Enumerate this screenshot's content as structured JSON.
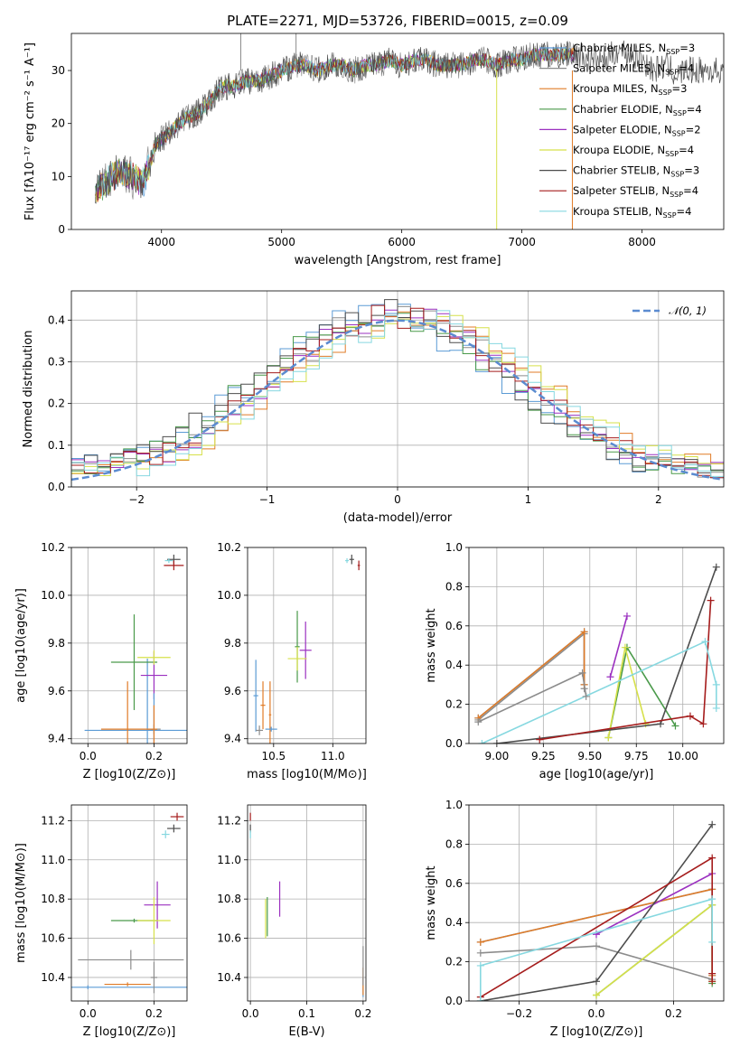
{
  "figure": {
    "title": "PLATE=2271, MJD=53726, FIBERID=0015, z=0.09",
    "models": [
      {
        "name": "Chabrier MILES",
        "nssp": "3",
        "color": "#5b9bd5"
      },
      {
        "name": "Salpeter MILES",
        "nssp": "4",
        "color": "#8c8c8c"
      },
      {
        "name": "Kroupa MILES",
        "nssp": "3",
        "color": "#e07b27"
      },
      {
        "name": "Chabrier ELODIE",
        "nssp": "4",
        "color": "#4a9a4a"
      },
      {
        "name": "Salpeter ELODIE",
        "nssp": "2",
        "color": "#9b30c0"
      },
      {
        "name": "Kroupa ELODIE",
        "nssp": "4",
        "color": "#d6e04a"
      },
      {
        "name": "Chabrier STELIB",
        "nssp": "3",
        "color": "#4d4d4d"
      },
      {
        "name": "Salpeter STELIB",
        "nssp": "4",
        "color": "#a51c1c"
      },
      {
        "name": "Kroupa STELIB",
        "nssp": "4",
        "color": "#86d8e0"
      }
    ]
  },
  "chart_data": [
    {
      "id": "spectrum",
      "type": "line",
      "xlabel": "wavelength [Angstrom, rest frame]",
      "ylabel": "Flux [fλ10⁻¹⁷ erg cm⁻² s⁻¹ A⁻¹]",
      "xlim": [
        3250,
        8680
      ],
      "ylim": [
        0,
        37
      ],
      "xticks": [
        4000,
        5000,
        6000,
        7000,
        8000
      ],
      "yticks": [
        0,
        10,
        20,
        30
      ],
      "grid": false,
      "legend": "right",
      "x": [
        3450,
        3550,
        3650,
        3750,
        3850,
        3900,
        3950,
        4000,
        4100,
        4200,
        4300,
        4400,
        4500,
        4600,
        4700,
        4800,
        4900,
        5000,
        5100,
        5200,
        5300,
        5400,
        5500,
        5600,
        5700,
        5800,
        5900,
        6000,
        6100,
        6200,
        6300,
        6400,
        6500,
        6600,
        6700,
        6800,
        6900,
        7000,
        7100,
        7200,
        7300,
        7400,
        7500,
        7600,
        7700,
        7800,
        7900,
        8000,
        8100,
        8200,
        8300,
        8350
      ],
      "flux": [
        7,
        9,
        11,
        10,
        9,
        12,
        16,
        17,
        19,
        21,
        22,
        24,
        27,
        27,
        28,
        28,
        29,
        30,
        31,
        31,
        30,
        31,
        31,
        30,
        31,
        31,
        32,
        31,
        32,
        32,
        31,
        31,
        31,
        32,
        32,
        31,
        32,
        32,
        33,
        33,
        33,
        33,
        33,
        32,
        32,
        34,
        33,
        32,
        30,
        31,
        29,
        30
      ],
      "dropouts": [
        {
          "x": 6790,
          "y": 0
        },
        {
          "x": 7420,
          "y": 0
        },
        {
          "x": 5120,
          "y": 37
        },
        {
          "x": 4660,
          "y": 37
        }
      ]
    },
    {
      "id": "residuals",
      "type": "line",
      "xlabel": "(data-model)/error",
      "ylabel": "Normed distribution",
      "xlim": [
        -2.5,
        2.5
      ],
      "ylim": [
        0,
        0.47
      ],
      "xticks": [
        -2,
        -1,
        0,
        1,
        2
      ],
      "yticks": [
        0.0,
        0.1,
        0.2,
        0.3,
        0.4
      ],
      "grid": true,
      "legend": "top-right",
      "reference_label": "𝒩(0, 1)",
      "bin_width": 0.1,
      "bin_start": -2.5
    },
    {
      "id": "age_vs_Z",
      "type": "scatter",
      "xlabel": "Z [log10(Z/Z⊙)]",
      "ylabel": "age  [log10(age/yr)]",
      "xlim": [
        -0.05,
        0.3
      ],
      "ylim": [
        9.38,
        10.2
      ],
      "xticks": [
        0.0,
        0.2
      ],
      "yticks": [
        9.4,
        9.6,
        9.8,
        10.0,
        10.2
      ],
      "grid": true,
      "points": [
        {
          "m": 0,
          "x": 0.18,
          "y": 9.435,
          "xe": 0.19,
          "ye": 0.3
        },
        {
          "m": 1,
          "x": 0.2,
          "y": 9.44,
          "xe": 0.02,
          "ye": 0.02
        },
        {
          "m": 2,
          "x": 0.12,
          "y": 9.44,
          "xe": 0.08,
          "ye": 0.2
        },
        {
          "m": 3,
          "x": 0.14,
          "y": 9.72,
          "xe": 0.07,
          "ye": 0.2
        },
        {
          "m": 4,
          "x": 0.2,
          "y": 9.665,
          "xe": 0.04,
          "ye": 0.1
        },
        {
          "m": 5,
          "x": 0.2,
          "y": 9.74,
          "xe": 0.05,
          "ye": 0.03
        },
        {
          "m": 6,
          "x": 0.26,
          "y": 10.15,
          "xe": 0.02,
          "ye": 0.02
        },
        {
          "m": 7,
          "x": 0.26,
          "y": 10.125,
          "xe": 0.03,
          "ye": 0.02
        },
        {
          "m": 8,
          "x": 0.245,
          "y": 10.145,
          "xe": 0.012,
          "ye": 0.01
        },
        {
          "m": 0,
          "x": 0.2,
          "y": 9.44,
          "xe": 0.01,
          "ye": 0.15
        },
        {
          "m": 2,
          "x": 0.2,
          "y": 9.44,
          "xe": 0.01,
          "ye": 0.1
        }
      ]
    },
    {
      "id": "age_vs_mass",
      "type": "scatter",
      "xlabel": "mass [log10(M/M⊙)]",
      "ylabel": "",
      "xlim": [
        10.28,
        11.28
      ],
      "ylim": [
        9.38,
        10.2
      ],
      "xticks": [
        10.5,
        11.0
      ],
      "yticks": [
        9.4,
        9.6,
        9.8,
        10.0,
        10.2
      ],
      "grid": true,
      "points": [
        {
          "m": 0,
          "x": 10.35,
          "y": 9.58,
          "xe": 0.02,
          "ye": 0.15
        },
        {
          "m": 1,
          "x": 10.38,
          "y": 9.435,
          "xe": 0.03,
          "ye": 0.02
        },
        {
          "m": 2,
          "x": 10.41,
          "y": 9.54,
          "xe": 0.02,
          "ye": 0.1
        },
        {
          "m": 3,
          "x": 10.7,
          "y": 9.785,
          "xe": 0.02,
          "ye": 0.15
        },
        {
          "m": 4,
          "x": 10.77,
          "y": 9.77,
          "xe": 0.05,
          "ye": 0.12
        },
        {
          "m": 5,
          "x": 10.7,
          "y": 9.735,
          "xe": 0.08,
          "ye": 0.05
        },
        {
          "m": 6,
          "x": 11.16,
          "y": 10.15,
          "xe": 0.02,
          "ye": 0.02
        },
        {
          "m": 7,
          "x": 11.22,
          "y": 10.125,
          "xe": 0.01,
          "ye": 0.02
        },
        {
          "m": 8,
          "x": 11.12,
          "y": 10.145,
          "xe": 0.015,
          "ye": 0.01
        },
        {
          "m": 2,
          "x": 10.47,
          "y": 9.5,
          "xe": 0.01,
          "ye": 0.14
        },
        {
          "m": 0,
          "x": 10.48,
          "y": 9.44,
          "xe": 0.05,
          "ye": 0.01
        }
      ]
    },
    {
      "id": "weight_vs_age",
      "type": "line",
      "xlabel": "age  [log10(age/yr)]",
      "ylabel": "mass weight",
      "xlim": [
        8.85,
        10.22
      ],
      "ylim": [
        0,
        1.0
      ],
      "xticks": [
        9.0,
        9.25,
        9.5,
        9.75,
        10.0
      ],
      "yticks": [
        0.0,
        0.2,
        0.4,
        0.6,
        0.8,
        1.0
      ],
      "grid": true,
      "series": [
        {
          "m": 0,
          "x": [
            8.9,
            9.47,
            9.47
          ],
          "y": [
            0.13,
            0.57,
            0.3
          ]
        },
        {
          "m": 1,
          "x": [
            8.9,
            9.47,
            9.47
          ],
          "y": [
            0.12,
            0.56,
            0.28
          ]
        },
        {
          "m": 2,
          "x": [
            8.9,
            9.47,
            9.47
          ],
          "y": [
            0.13,
            0.57,
            0.3
          ]
        },
        {
          "m": 3,
          "x": [
            9.6,
            9.7,
            9.96
          ],
          "y": [
            0.03,
            0.49,
            0.09
          ]
        },
        {
          "m": 4,
          "x": [
            9.61,
            9.7
          ],
          "y": [
            0.34,
            0.65
          ]
        },
        {
          "m": 5,
          "x": [
            9.6,
            9.69,
            9.8
          ],
          "y": [
            0.03,
            0.49,
            0.1
          ]
        },
        {
          "m": 6,
          "x": [
            9.0,
            9.88,
            10.18
          ],
          "y": [
            0.0,
            0.1,
            0.9
          ]
        },
        {
          "m": 7,
          "x": [
            9.23,
            10.04,
            10.11,
            10.15
          ],
          "y": [
            0.02,
            0.14,
            0.1,
            0.73
          ]
        },
        {
          "m": 8,
          "x": [
            8.92,
            10.12,
            10.18,
            10.18
          ],
          "y": [
            0.0,
            0.52,
            0.3,
            0.18
          ]
        },
        {
          "m": 1,
          "x": [
            8.9,
            9.46,
            9.48
          ],
          "y": [
            0.11,
            0.36,
            0.24
          ]
        }
      ]
    },
    {
      "id": "mass_vs_Z",
      "type": "scatter",
      "xlabel": "Z [log10(Z/Z⊙)]",
      "ylabel": "mass [log10(M/M⊙)]",
      "xlim": [
        -0.05,
        0.3
      ],
      "ylim": [
        10.28,
        11.28
      ],
      "xticks": [
        0.0,
        0.2
      ],
      "yticks": [
        10.4,
        10.6,
        10.8,
        11.0,
        11.2
      ],
      "grid": true,
      "points": [
        {
          "m": 0,
          "x": 0.0,
          "y": 10.35,
          "xe": 0.35,
          "ye": 0.01
        },
        {
          "m": 2,
          "x": 0.12,
          "y": 10.365,
          "xe": 0.07,
          "ye": 0.01
        },
        {
          "m": 1,
          "x": 0.2,
          "y": 10.4,
          "xe": 0.01,
          "ye": 0.08
        },
        {
          "m": 3,
          "x": 0.14,
          "y": 10.69,
          "xe": 0.07,
          "ye": 0.01
        },
        {
          "m": 4,
          "x": 0.21,
          "y": 10.77,
          "xe": 0.04,
          "ye": 0.12
        },
        {
          "m": 5,
          "x": 0.2,
          "y": 10.69,
          "xe": 0.05,
          "ye": 0.12
        },
        {
          "m": 6,
          "x": 0.26,
          "y": 11.16,
          "xe": 0.02,
          "ye": 0.02
        },
        {
          "m": 7,
          "x": 0.27,
          "y": 11.22,
          "xe": 0.02,
          "ye": 0.02
        },
        {
          "m": 8,
          "x": 0.235,
          "y": 11.13,
          "xe": 0.012,
          "ye": 0.02
        },
        {
          "m": 1,
          "x": 0.13,
          "y": 10.49,
          "xe": 0.16,
          "ye": 0.05
        }
      ]
    },
    {
      "id": "mass_vs_EBV",
      "type": "scatter",
      "xlabel": "E(B-V)",
      "ylabel": "",
      "xlim": [
        -0.005,
        0.205
      ],
      "ylim": [
        10.28,
        11.28
      ],
      "xticks": [
        0.0,
        0.1,
        0.2
      ],
      "yticks": [
        10.4,
        10.6,
        10.8,
        11.0,
        11.2
      ],
      "grid": true,
      "points": [
        {
          "m": 0,
          "x": 0.2,
          "y": 10.35,
          "xe": 0.0,
          "ye": 0.05
        },
        {
          "m": 2,
          "x": 0.2,
          "y": 10.38,
          "xe": 0.0,
          "ye": 0.07
        },
        {
          "m": 1,
          "x": 0.2,
          "y": 10.46,
          "xe": 0.0,
          "ye": 0.1
        },
        {
          "m": 3,
          "x": 0.03,
          "y": 10.71,
          "xe": 0.0,
          "ye": 0.1
        },
        {
          "m": 4,
          "x": 0.052,
          "y": 10.8,
          "xe": 0.0,
          "ye": 0.09
        },
        {
          "m": 5,
          "x": 0.027,
          "y": 10.7,
          "xe": 0.0,
          "ye": 0.1
        },
        {
          "m": 6,
          "x": 0.0,
          "y": 11.16,
          "xe": 0.0,
          "ye": 0.02
        },
        {
          "m": 7,
          "x": 0.0,
          "y": 11.22,
          "xe": 0.0,
          "ye": 0.02
        },
        {
          "m": 8,
          "x": 0.0,
          "y": 11.13,
          "xe": 0.0,
          "ye": 0.02
        }
      ]
    },
    {
      "id": "weight_vs_Z",
      "type": "line",
      "xlabel": "Z [log10(Z/Z⊙)]",
      "ylabel": "mass weight",
      "xlim": [
        -0.33,
        0.33
      ],
      "ylim": [
        0,
        1.0
      ],
      "xticks": [
        -0.2,
        0.0,
        0.2
      ],
      "yticks": [
        0.0,
        0.2,
        0.4,
        0.6,
        0.8,
        1.0
      ],
      "grid": true,
      "series": [
        {
          "m": 0,
          "x": [
            -0.3,
            0.3,
            0.3
          ],
          "y": [
            0.3,
            0.57,
            0.13
          ]
        },
        {
          "m": 2,
          "x": [
            -0.3,
            0.3,
            0.3
          ],
          "y": [
            0.3,
            0.57,
            0.13
          ]
        },
        {
          "m": 1,
          "x": [
            -0.3,
            0.0,
            0.3
          ],
          "y": [
            0.245,
            0.28,
            0.11
          ]
        },
        {
          "m": 3,
          "x": [
            0.0,
            0.3,
            0.3
          ],
          "y": [
            0.03,
            0.49,
            0.09
          ]
        },
        {
          "m": 4,
          "x": [
            0.0,
            0.3
          ],
          "y": [
            0.34,
            0.65
          ]
        },
        {
          "m": 5,
          "x": [
            0.0,
            0.3,
            0.3
          ],
          "y": [
            0.03,
            0.49,
            0.1
          ]
        },
        {
          "m": 6,
          "x": [
            -0.3,
            0.0,
            0.3
          ],
          "y": [
            0.0,
            0.1,
            0.9
          ]
        },
        {
          "m": 7,
          "x": [
            -0.3,
            0.3,
            0.3,
            0.3
          ],
          "y": [
            0.02,
            0.73,
            0.14,
            0.1
          ]
        },
        {
          "m": 8,
          "x": [
            -0.3,
            -0.3,
            0.3,
            0.3
          ],
          "y": [
            0.0,
            0.18,
            0.52,
            0.3
          ]
        }
      ]
    }
  ]
}
